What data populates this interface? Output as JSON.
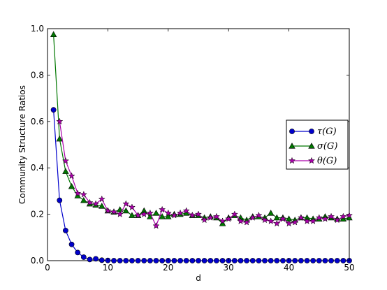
{
  "chart_data": {
    "type": "line",
    "title": "",
    "xlabel": "d",
    "ylabel": "Community Structure Ratios",
    "xlim": [
      0,
      50
    ],
    "ylim": [
      0.0,
      1.0
    ],
    "xticks": [
      0,
      10,
      20,
      30,
      40,
      50
    ],
    "yticks": [
      0.0,
      0.2,
      0.4,
      0.6,
      0.8,
      1.0
    ],
    "xtick_labels": [
      "0",
      "10",
      "20",
      "30",
      "40",
      "50"
    ],
    "ytick_labels": [
      "0.0",
      "0.2",
      "0.4",
      "0.6",
      "0.8",
      "1.0"
    ],
    "grid": false,
    "legend_position": "center-right",
    "x": [
      1,
      2,
      3,
      4,
      5,
      6,
      7,
      8,
      9,
      10,
      11,
      12,
      13,
      14,
      15,
      16,
      17,
      18,
      19,
      20,
      21,
      22,
      23,
      24,
      25,
      26,
      27,
      28,
      29,
      30,
      31,
      32,
      33,
      34,
      35,
      36,
      37,
      38,
      39,
      40,
      41,
      42,
      43,
      44,
      45,
      46,
      47,
      48,
      49,
      50
    ],
    "series": [
      {
        "name": "τ(G)",
        "color": "#0000cc",
        "marker": "circle",
        "values": [
          0.65,
          0.26,
          0.13,
          0.07,
          0.035,
          0.015,
          0.005,
          0.008,
          0.002,
          0.001,
          0,
          0,
          0,
          0,
          0,
          0,
          0,
          0,
          0,
          0,
          0,
          0,
          0,
          0,
          0,
          0,
          0,
          0,
          0,
          0,
          0,
          0,
          0,
          0,
          0,
          0,
          0,
          0,
          0,
          0,
          0,
          0,
          0,
          0,
          0,
          0,
          0,
          0,
          0,
          0
        ]
      },
      {
        "name": "σ(G)",
        "color": "#007700",
        "marker": "triangle",
        "values": [
          0.975,
          0.525,
          0.385,
          0.32,
          0.28,
          0.26,
          0.245,
          0.24,
          0.235,
          0.215,
          0.21,
          0.22,
          0.215,
          0.195,
          0.195,
          0.215,
          0.19,
          0.205,
          0.19,
          0.19,
          0.2,
          0.2,
          0.205,
          0.195,
          0.195,
          0.185,
          0.19,
          0.185,
          0.16,
          0.185,
          0.195,
          0.185,
          0.175,
          0.19,
          0.19,
          0.185,
          0.205,
          0.185,
          0.185,
          0.18,
          0.175,
          0.185,
          0.185,
          0.18,
          0.18,
          0.19,
          0.185,
          0.18,
          0.18,
          0.185
        ]
      },
      {
        "name": "θ(G)",
        "color": "#aa00aa",
        "marker": "star",
        "values": [
          null,
          0.6,
          0.43,
          0.365,
          0.29,
          0.285,
          0.25,
          0.245,
          0.265,
          0.215,
          0.21,
          0.2,
          0.245,
          0.23,
          0.195,
          0.2,
          0.205,
          0.15,
          0.22,
          0.205,
          0.195,
          0.205,
          0.215,
          0.195,
          0.2,
          0.175,
          0.185,
          0.19,
          0.17,
          0.18,
          0.2,
          0.17,
          0.165,
          0.185,
          0.195,
          0.175,
          0.17,
          0.16,
          0.18,
          0.16,
          0.165,
          0.185,
          0.17,
          0.17,
          0.185,
          0.18,
          0.19,
          0.175,
          0.19,
          0.195
        ]
      }
    ]
  }
}
